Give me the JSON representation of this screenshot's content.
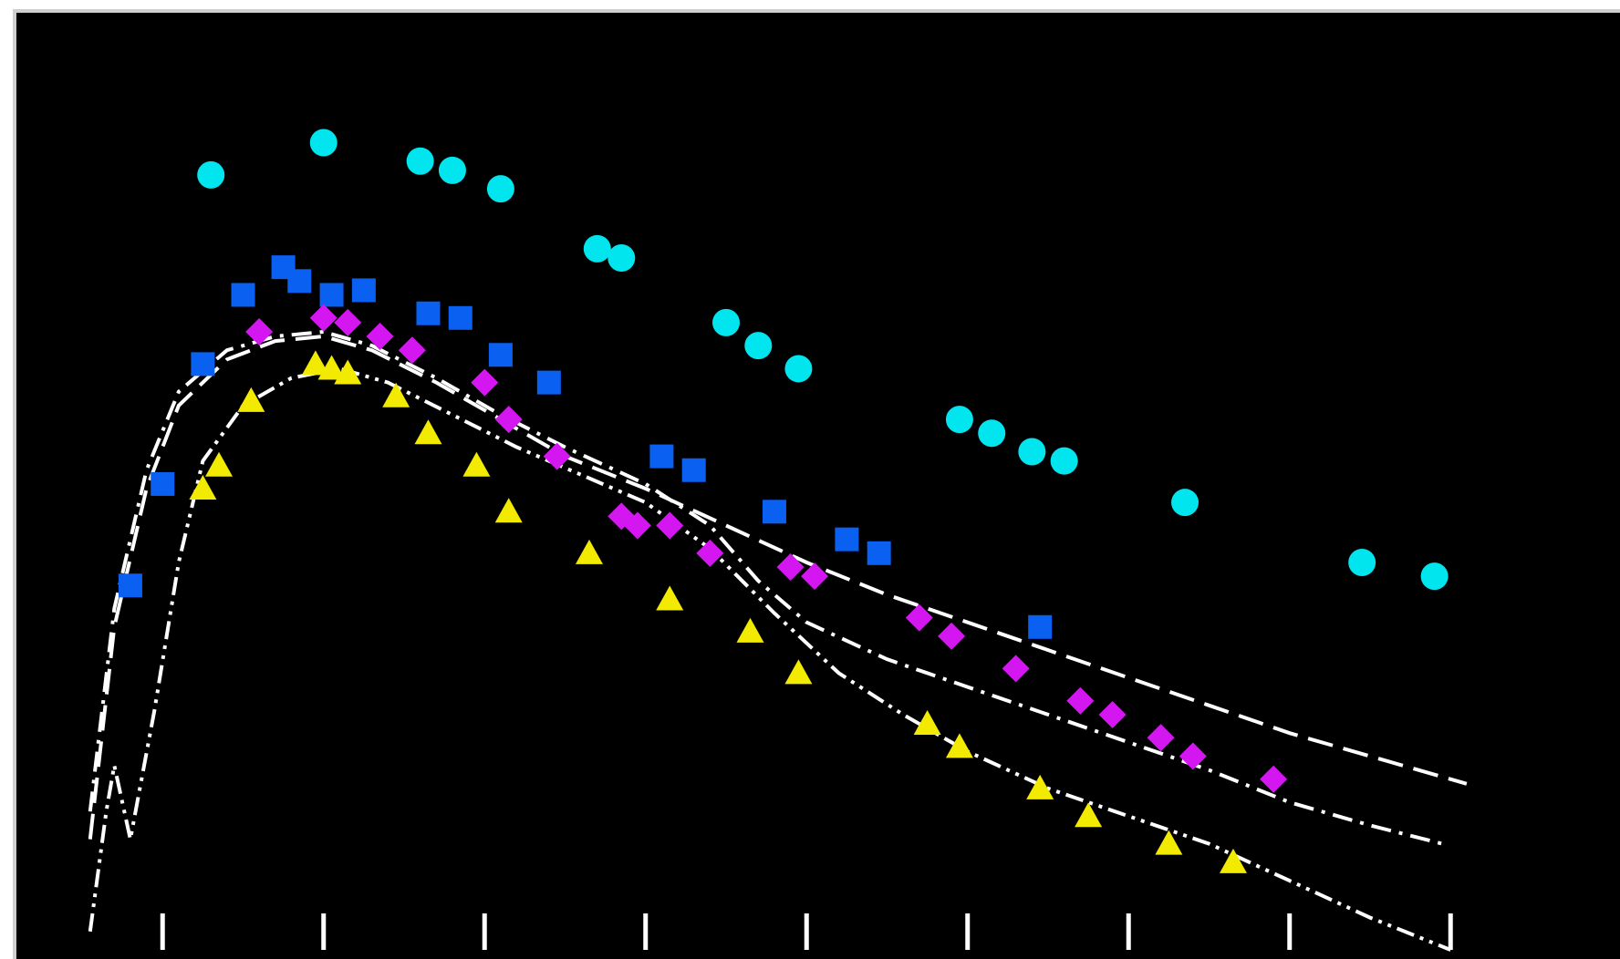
{
  "chart_data": {
    "type": "scatter",
    "title": "",
    "xlabel": "",
    "ylabel": "",
    "grid": false,
    "legend": "none",
    "xlim": [
      0,
      9.5
    ],
    "ylim": [
      0,
      10
    ],
    "x_ticks": [
      0.5,
      1.5,
      2.5,
      3.5,
      4.5,
      5.5,
      6.5,
      7.5,
      8.5
    ],
    "tick_labels_visible": false,
    "series": [
      {
        "marker": "circle",
        "color": "#00e5ee",
        "values": [
          {
            "x": 0.8,
            "y": 8.4
          },
          {
            "x": 1.5,
            "y": 8.75
          },
          {
            "x": 2.1,
            "y": 8.55
          },
          {
            "x": 2.3,
            "y": 8.45
          },
          {
            "x": 2.6,
            "y": 8.25
          },
          {
            "x": 3.2,
            "y": 7.6
          },
          {
            "x": 3.35,
            "y": 7.5
          },
          {
            "x": 4.0,
            "y": 6.8
          },
          {
            "x": 4.2,
            "y": 6.55
          },
          {
            "x": 4.45,
            "y": 6.3
          },
          {
            "x": 5.45,
            "y": 5.75
          },
          {
            "x": 5.65,
            "y": 5.6
          },
          {
            "x": 5.9,
            "y": 5.4
          },
          {
            "x": 6.1,
            "y": 5.3
          },
          {
            "x": 6.85,
            "y": 4.85
          },
          {
            "x": 7.95,
            "y": 4.2
          },
          {
            "x": 8.4,
            "y": 4.05
          }
        ]
      },
      {
        "marker": "square",
        "color": "#0a60f0",
        "values": [
          {
            "x": 0.3,
            "y": 3.95
          },
          {
            "x": 0.5,
            "y": 5.05
          },
          {
            "x": 0.75,
            "y": 6.35
          },
          {
            "x": 1.0,
            "y": 7.1
          },
          {
            "x": 1.25,
            "y": 7.4
          },
          {
            "x": 1.35,
            "y": 7.25
          },
          {
            "x": 1.55,
            "y": 7.1
          },
          {
            "x": 1.75,
            "y": 7.15
          },
          {
            "x": 2.15,
            "y": 6.9
          },
          {
            "x": 2.35,
            "y": 6.85
          },
          {
            "x": 2.6,
            "y": 6.45
          },
          {
            "x": 2.9,
            "y": 6.15
          },
          {
            "x": 3.6,
            "y": 5.35
          },
          {
            "x": 3.8,
            "y": 5.2
          },
          {
            "x": 4.3,
            "y": 4.75
          },
          {
            "x": 4.75,
            "y": 4.45
          },
          {
            "x": 4.95,
            "y": 4.3
          },
          {
            "x": 5.95,
            "y": 3.5
          }
        ]
      },
      {
        "marker": "diamond",
        "color": "#d416f0",
        "values": [
          {
            "x": 1.1,
            "y": 6.7
          },
          {
            "x": 1.5,
            "y": 6.85
          },
          {
            "x": 1.65,
            "y": 6.8
          },
          {
            "x": 1.85,
            "y": 6.65
          },
          {
            "x": 2.05,
            "y": 6.5
          },
          {
            "x": 2.5,
            "y": 6.15
          },
          {
            "x": 2.65,
            "y": 5.75
          },
          {
            "x": 2.95,
            "y": 5.35
          },
          {
            "x": 3.35,
            "y": 4.7
          },
          {
            "x": 3.45,
            "y": 4.6
          },
          {
            "x": 3.65,
            "y": 4.6
          },
          {
            "x": 3.9,
            "y": 4.3
          },
          {
            "x": 4.4,
            "y": 4.15
          },
          {
            "x": 4.55,
            "y": 4.05
          },
          {
            "x": 5.2,
            "y": 3.6
          },
          {
            "x": 5.4,
            "y": 3.4
          },
          {
            "x": 5.8,
            "y": 3.05
          },
          {
            "x": 6.2,
            "y": 2.7
          },
          {
            "x": 6.4,
            "y": 2.55
          },
          {
            "x": 6.7,
            "y": 2.3
          },
          {
            "x": 6.9,
            "y": 2.1
          },
          {
            "x": 7.4,
            "y": 1.85
          }
        ]
      },
      {
        "marker": "triangle",
        "color": "#f2ea00",
        "values": [
          {
            "x": 0.75,
            "y": 5.0
          },
          {
            "x": 0.85,
            "y": 5.25
          },
          {
            "x": 1.05,
            "y": 5.95
          },
          {
            "x": 1.45,
            "y": 6.35
          },
          {
            "x": 1.55,
            "y": 6.3
          },
          {
            "x": 1.65,
            "y": 6.25
          },
          {
            "x": 1.95,
            "y": 6.0
          },
          {
            "x": 2.15,
            "y": 5.6
          },
          {
            "x": 2.45,
            "y": 5.25
          },
          {
            "x": 2.65,
            "y": 4.75
          },
          {
            "x": 3.15,
            "y": 4.3
          },
          {
            "x": 3.65,
            "y": 3.8
          },
          {
            "x": 4.15,
            "y": 3.45
          },
          {
            "x": 4.45,
            "y": 3.0
          },
          {
            "x": 5.25,
            "y": 2.45
          },
          {
            "x": 5.45,
            "y": 2.2
          },
          {
            "x": 5.95,
            "y": 1.75
          },
          {
            "x": 6.25,
            "y": 1.45
          },
          {
            "x": 6.75,
            "y": 1.15
          },
          {
            "x": 7.15,
            "y": 0.95
          }
        ]
      }
    ],
    "curves": [
      {
        "style": "dashed",
        "color": "#ffffff",
        "values": [
          {
            "x": 0.05,
            "y": 1.2
          },
          {
            "x": 0.2,
            "y": 3.5
          },
          {
            "x": 0.4,
            "y": 5.0
          },
          {
            "x": 0.6,
            "y": 5.9
          },
          {
            "x": 0.9,
            "y": 6.4
          },
          {
            "x": 1.2,
            "y": 6.6
          },
          {
            "x": 1.5,
            "y": 6.65
          },
          {
            "x": 1.8,
            "y": 6.5
          },
          {
            "x": 2.2,
            "y": 6.15
          },
          {
            "x": 2.6,
            "y": 5.75
          },
          {
            "x": 3.0,
            "y": 5.35
          },
          {
            "x": 3.5,
            "y": 5.0
          },
          {
            "x": 4.0,
            "y": 4.6
          },
          {
            "x": 4.5,
            "y": 4.2
          },
          {
            "x": 5.0,
            "y": 3.85
          },
          {
            "x": 5.5,
            "y": 3.55
          },
          {
            "x": 6.0,
            "y": 3.25
          },
          {
            "x": 6.5,
            "y": 2.95
          },
          {
            "x": 7.0,
            "y": 2.65
          },
          {
            "x": 7.5,
            "y": 2.35
          },
          {
            "x": 8.0,
            "y": 2.1
          },
          {
            "x": 8.6,
            "y": 1.8
          }
        ]
      },
      {
        "style": "dash-dot",
        "color": "#ffffff",
        "values": [
          {
            "x": 0.05,
            "y": 1.5
          },
          {
            "x": 0.2,
            "y": 3.7
          },
          {
            "x": 0.4,
            "y": 5.2
          },
          {
            "x": 0.6,
            "y": 6.05
          },
          {
            "x": 0.9,
            "y": 6.5
          },
          {
            "x": 1.2,
            "y": 6.65
          },
          {
            "x": 1.5,
            "y": 6.7
          },
          {
            "x": 1.8,
            "y": 6.55
          },
          {
            "x": 2.2,
            "y": 6.2
          },
          {
            "x": 2.6,
            "y": 5.8
          },
          {
            "x": 3.0,
            "y": 5.45
          },
          {
            "x": 3.5,
            "y": 5.05
          },
          {
            "x": 3.9,
            "y": 4.6
          },
          {
            "x": 4.2,
            "y": 4.0
          },
          {
            "x": 4.5,
            "y": 3.55
          },
          {
            "x": 5.0,
            "y": 3.15
          },
          {
            "x": 5.5,
            "y": 2.85
          },
          {
            "x": 6.0,
            "y": 2.55
          },
          {
            "x": 6.5,
            "y": 2.25
          },
          {
            "x": 7.0,
            "y": 1.95
          },
          {
            "x": 7.5,
            "y": 1.6
          },
          {
            "x": 8.0,
            "y": 1.35
          },
          {
            "x": 8.45,
            "y": 1.15
          }
        ]
      },
      {
        "style": "dash-dot-dot",
        "color": "#ffffff",
        "values": [
          {
            "x": 0.05,
            "y": 0.2
          },
          {
            "x": 0.15,
            "y": 1.5
          },
          {
            "x": 0.2,
            "y": 2.0
          },
          {
            "x": 0.3,
            "y": 1.2
          },
          {
            "x": 0.45,
            "y": 2.6
          },
          {
            "x": 0.6,
            "y": 4.2
          },
          {
            "x": 0.75,
            "y": 5.3
          },
          {
            "x": 1.0,
            "y": 5.9
          },
          {
            "x": 1.3,
            "y": 6.2
          },
          {
            "x": 1.6,
            "y": 6.3
          },
          {
            "x": 1.9,
            "y": 6.15
          },
          {
            "x": 2.3,
            "y": 5.8
          },
          {
            "x": 2.7,
            "y": 5.45
          },
          {
            "x": 3.1,
            "y": 5.15
          },
          {
            "x": 3.5,
            "y": 4.85
          },
          {
            "x": 3.9,
            "y": 4.35
          },
          {
            "x": 4.3,
            "y": 3.65
          },
          {
            "x": 4.7,
            "y": 3.0
          },
          {
            "x": 5.1,
            "y": 2.55
          },
          {
            "x": 5.5,
            "y": 2.15
          },
          {
            "x": 6.0,
            "y": 1.75
          },
          {
            "x": 6.5,
            "y": 1.45
          },
          {
            "x": 7.0,
            "y": 1.15
          },
          {
            "x": 7.5,
            "y": 0.75
          },
          {
            "x": 8.0,
            "y": 0.35
          },
          {
            "x": 8.5,
            "y": 0.0
          }
        ]
      }
    ]
  }
}
